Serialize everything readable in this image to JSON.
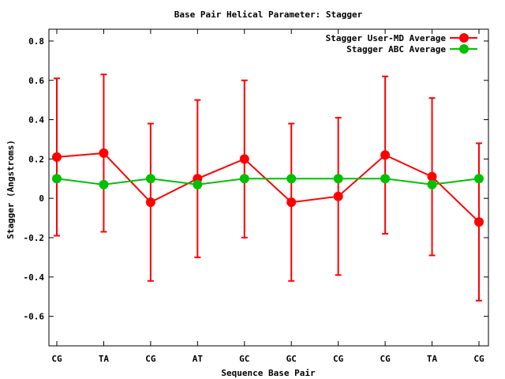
{
  "chart_data": {
    "type": "line",
    "title": "Base Pair Helical Parameter: Stagger",
    "xlabel": "Sequence Base Pair",
    "ylabel": "Stagger (Angstroms)",
    "categories": [
      "CG",
      "TA",
      "CG",
      "AT",
      "GC",
      "GC",
      "CG",
      "CG",
      "TA",
      "CG"
    ],
    "ylim": [
      -0.75,
      0.86
    ],
    "yticks": [
      -0.6,
      -0.4,
      -0.2,
      0,
      0.2,
      0.4,
      0.6,
      0.8
    ],
    "ytick_labels": [
      "-0.6",
      "-0.4",
      "-0.2",
      "0",
      "0.2",
      "0.4",
      "0.6",
      "0.8"
    ],
    "grid": false,
    "legend_position": "top-right",
    "series": [
      {
        "name": "Stagger User-MD Average",
        "color": "#ff0000",
        "values": [
          0.21,
          0.23,
          -0.02,
          0.1,
          0.2,
          -0.02,
          0.01,
          0.22,
          0.11,
          -0.12
        ],
        "error_low": [
          -0.19,
          -0.17,
          -0.42,
          -0.3,
          -0.2,
          -0.42,
          -0.39,
          -0.18,
          -0.29,
          -0.52
        ],
        "error_high": [
          0.61,
          0.63,
          0.38,
          0.5,
          0.6,
          0.38,
          0.41,
          0.62,
          0.51,
          0.28
        ]
      },
      {
        "name": "Stagger ABC Average",
        "color": "#00c000",
        "values": [
          0.1,
          0.07,
          0.1,
          0.07,
          0.1,
          0.1,
          0.1,
          0.1,
          0.07,
          0.1
        ]
      }
    ]
  }
}
